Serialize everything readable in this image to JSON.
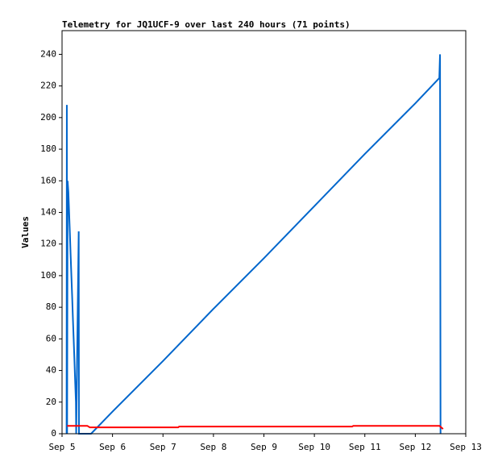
{
  "chart_data": {
    "type": "line",
    "title": "Telemetry for JQ1UCF-9 over last 240 hours (71 points)",
    "y_label": "Values",
    "xlim": [
      5,
      13
    ],
    "xticks": [
      {
        "value": 5,
        "label": "Sep 5"
      },
      {
        "value": 6,
        "label": "Sep 6"
      },
      {
        "value": 7,
        "label": "Sep 7"
      },
      {
        "value": 8,
        "label": "Sep 8"
      },
      {
        "value": 9,
        "label": "Sep 9"
      },
      {
        "value": 10,
        "label": "Sep 10"
      },
      {
        "value": 11,
        "label": "Sep 11"
      },
      {
        "value": 12,
        "label": "Sep 12"
      },
      {
        "value": 13,
        "label": "Sep 13"
      }
    ],
    "ylim": [
      0,
      255
    ],
    "yticks": [
      0,
      20,
      40,
      60,
      80,
      100,
      120,
      140,
      160,
      180,
      200,
      220,
      240
    ],
    "series": [
      {
        "color": "#0066cc",
        "x": [
          5.09,
          5.095,
          5.1,
          5.11,
          5.125,
          5.14,
          5.155,
          5.17,
          5.185,
          5.2,
          5.215,
          5.23,
          5.245,
          5.26,
          5.275,
          5.28,
          5.33,
          5.335,
          5.575,
          6,
          7,
          8,
          9,
          10,
          11,
          12,
          12.476,
          12.49,
          12.5
        ],
        "values": [
          0,
          208,
          0,
          160,
          153,
          140,
          127,
          113,
          100,
          87,
          73,
          60,
          47,
          33,
          20,
          0,
          128,
          0,
          0,
          14,
          46,
          79,
          111,
          144,
          177,
          209,
          225,
          240,
          0
        ]
      },
      {
        "color": "#ff0000",
        "x": [
          5.1,
          5.5,
          5.55,
          7.3,
          7.32,
          10.75,
          10.77,
          12.48,
          12.55
        ],
        "values": [
          5,
          5,
          4,
          4,
          4.5,
          4.5,
          5,
          5,
          3
        ]
      }
    ]
  }
}
